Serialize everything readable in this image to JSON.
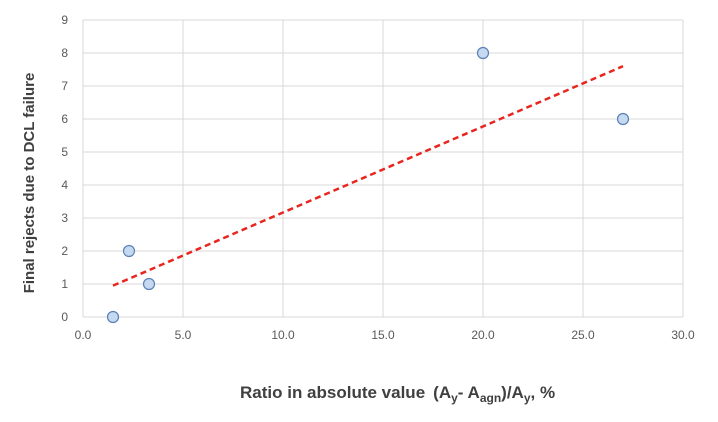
{
  "chart_data": {
    "type": "scatter",
    "title": "",
    "ylabel": "Final rejects due to DCL failure",
    "xlabel": {
      "prefix": "Ratio in absolute value",
      "open": "(A",
      "sub1": "y",
      "mid": "- A",
      "sub2": "agn",
      "div": ")/A",
      "sub3": "y",
      "suffix": ", %"
    },
    "xlim": [
      0,
      30
    ],
    "ylim": [
      0,
      9
    ],
    "x_ticks": [
      "0.0",
      "5.0",
      "10.0",
      "15.0",
      "20.0",
      "25.0",
      "30.0"
    ],
    "y_ticks": [
      "0",
      "1",
      "2",
      "3",
      "4",
      "5",
      "6",
      "7",
      "8",
      "9"
    ],
    "grid": true,
    "points": [
      {
        "x": 1.5,
        "y": 0
      },
      {
        "x": 2.3,
        "y": 2
      },
      {
        "x": 3.3,
        "y": 1
      },
      {
        "x": 20.0,
        "y": 8
      },
      {
        "x": 27.0,
        "y": 6
      }
    ],
    "trendline": {
      "type": "linear",
      "x_start": 1.5,
      "y_start": 0.95,
      "x_end": 27.0,
      "y_end": 7.6,
      "color": "#e8261f"
    },
    "marker_fill": "#c5d9f1",
    "marker_stroke": "#5b7fb5",
    "grid_color": "#d9d9d9"
  }
}
